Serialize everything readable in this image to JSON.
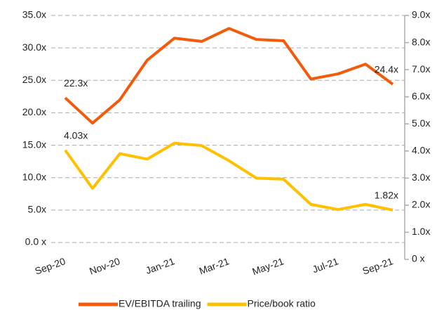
{
  "chart_data": {
    "type": "line",
    "categories": [
      "Sep-20",
      null,
      "Nov-20",
      null,
      "Jan-21",
      null,
      "Mar-21",
      null,
      "May-21",
      null,
      "Jul-21",
      null,
      "Sep-21"
    ],
    "series": [
      {
        "name": "EV/EBITDA trailing",
        "color": "#f35a0a",
        "axis": "y",
        "values": [
          22.3,
          18.4,
          22.0,
          28.1,
          31.5,
          31.0,
          33.0,
          31.3,
          31.1,
          25.2,
          26.0,
          27.5,
          24.4
        ],
        "value_labels": [
          "22.3x",
          null,
          null,
          null,
          null,
          null,
          null,
          null,
          null,
          null,
          null,
          null,
          "24.4x"
        ]
      },
      {
        "name": "Price/book ratio",
        "color": "#ffc000",
        "axis": "y2",
        "values": [
          4.03,
          2.62,
          3.9,
          3.7,
          4.29,
          4.2,
          3.64,
          3.0,
          2.96,
          2.03,
          1.84,
          2.03,
          1.82
        ],
        "value_labels": [
          "4.03x",
          null,
          null,
          null,
          null,
          null,
          null,
          null,
          null,
          null,
          null,
          null,
          "1.82x"
        ]
      }
    ],
    "ylim": [
      0,
      35
    ],
    "yticks": [
      {
        "value": 0,
        "label": "0.0 x"
      },
      {
        "value": 5,
        "label": "5.0x"
      },
      {
        "value": 10,
        "label": "10.0x"
      },
      {
        "value": 15,
        "label": "15.0x"
      },
      {
        "value": 20,
        "label": "20.0x"
      },
      {
        "value": 25,
        "label": "25.0x"
      },
      {
        "value": 30,
        "label": "30.0x"
      },
      {
        "value": 35,
        "label": "35.0x"
      }
    ],
    "y2lim": [
      0,
      9
    ],
    "y2ticks": [
      {
        "value": 0,
        "label": "0 x"
      },
      {
        "value": 1,
        "label": "1.0x"
      },
      {
        "value": 2,
        "label": "2.0x"
      },
      {
        "value": 3,
        "label": "3.0x"
      },
      {
        "value": 4,
        "label": "4.0x"
      },
      {
        "value": 5,
        "label": "5.0x"
      },
      {
        "value": 6,
        "label": "6.0x"
      },
      {
        "value": 7,
        "label": "7.0x"
      },
      {
        "value": 8,
        "label": "8.0x"
      },
      {
        "value": 9,
        "label": "9.0x"
      }
    ],
    "grid": true,
    "legend": "bottom"
  }
}
